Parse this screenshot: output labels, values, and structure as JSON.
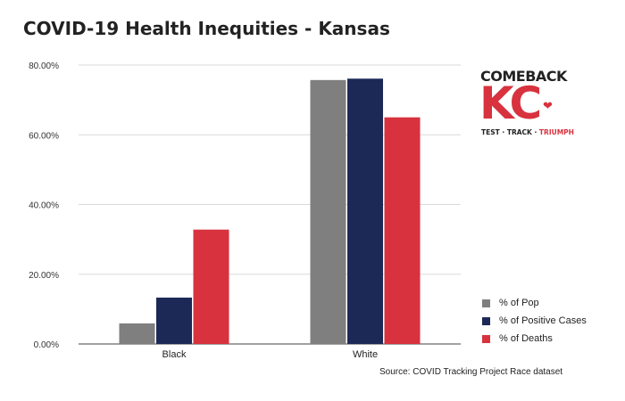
{
  "title": "COVID-19 Health Inequities - Kansas",
  "source": "Source: COVID Tracking Project Race dataset",
  "logo": {
    "top": "COMEBACK",
    "main": "KC",
    "tag_part1": "TEST · TRACK · ",
    "tag_part2": "TRIUMPH"
  },
  "chart_data": {
    "type": "bar",
    "title": "COVID-19 Health Inequities - Kansas",
    "xlabel": "",
    "ylabel": "",
    "categories": [
      "Black",
      "White"
    ],
    "series": [
      {
        "name": "% of Pop",
        "values": [
          5.9,
          75.7
        ],
        "color": "#7f7f7f"
      },
      {
        "name": "% of Positive Cases",
        "values": [
          13.3,
          76.1
        ],
        "color": "#1c2957"
      },
      {
        "name": "% of Deaths",
        "values": [
          32.8,
          65.0
        ],
        "color": "#d7323e"
      }
    ],
    "ylim": [
      0,
      80
    ],
    "yticks": [
      "0.00%",
      "20.00%",
      "40.00%",
      "60.00%",
      "80.00%"
    ],
    "grid": true,
    "legend_position": "bottom-right"
  }
}
